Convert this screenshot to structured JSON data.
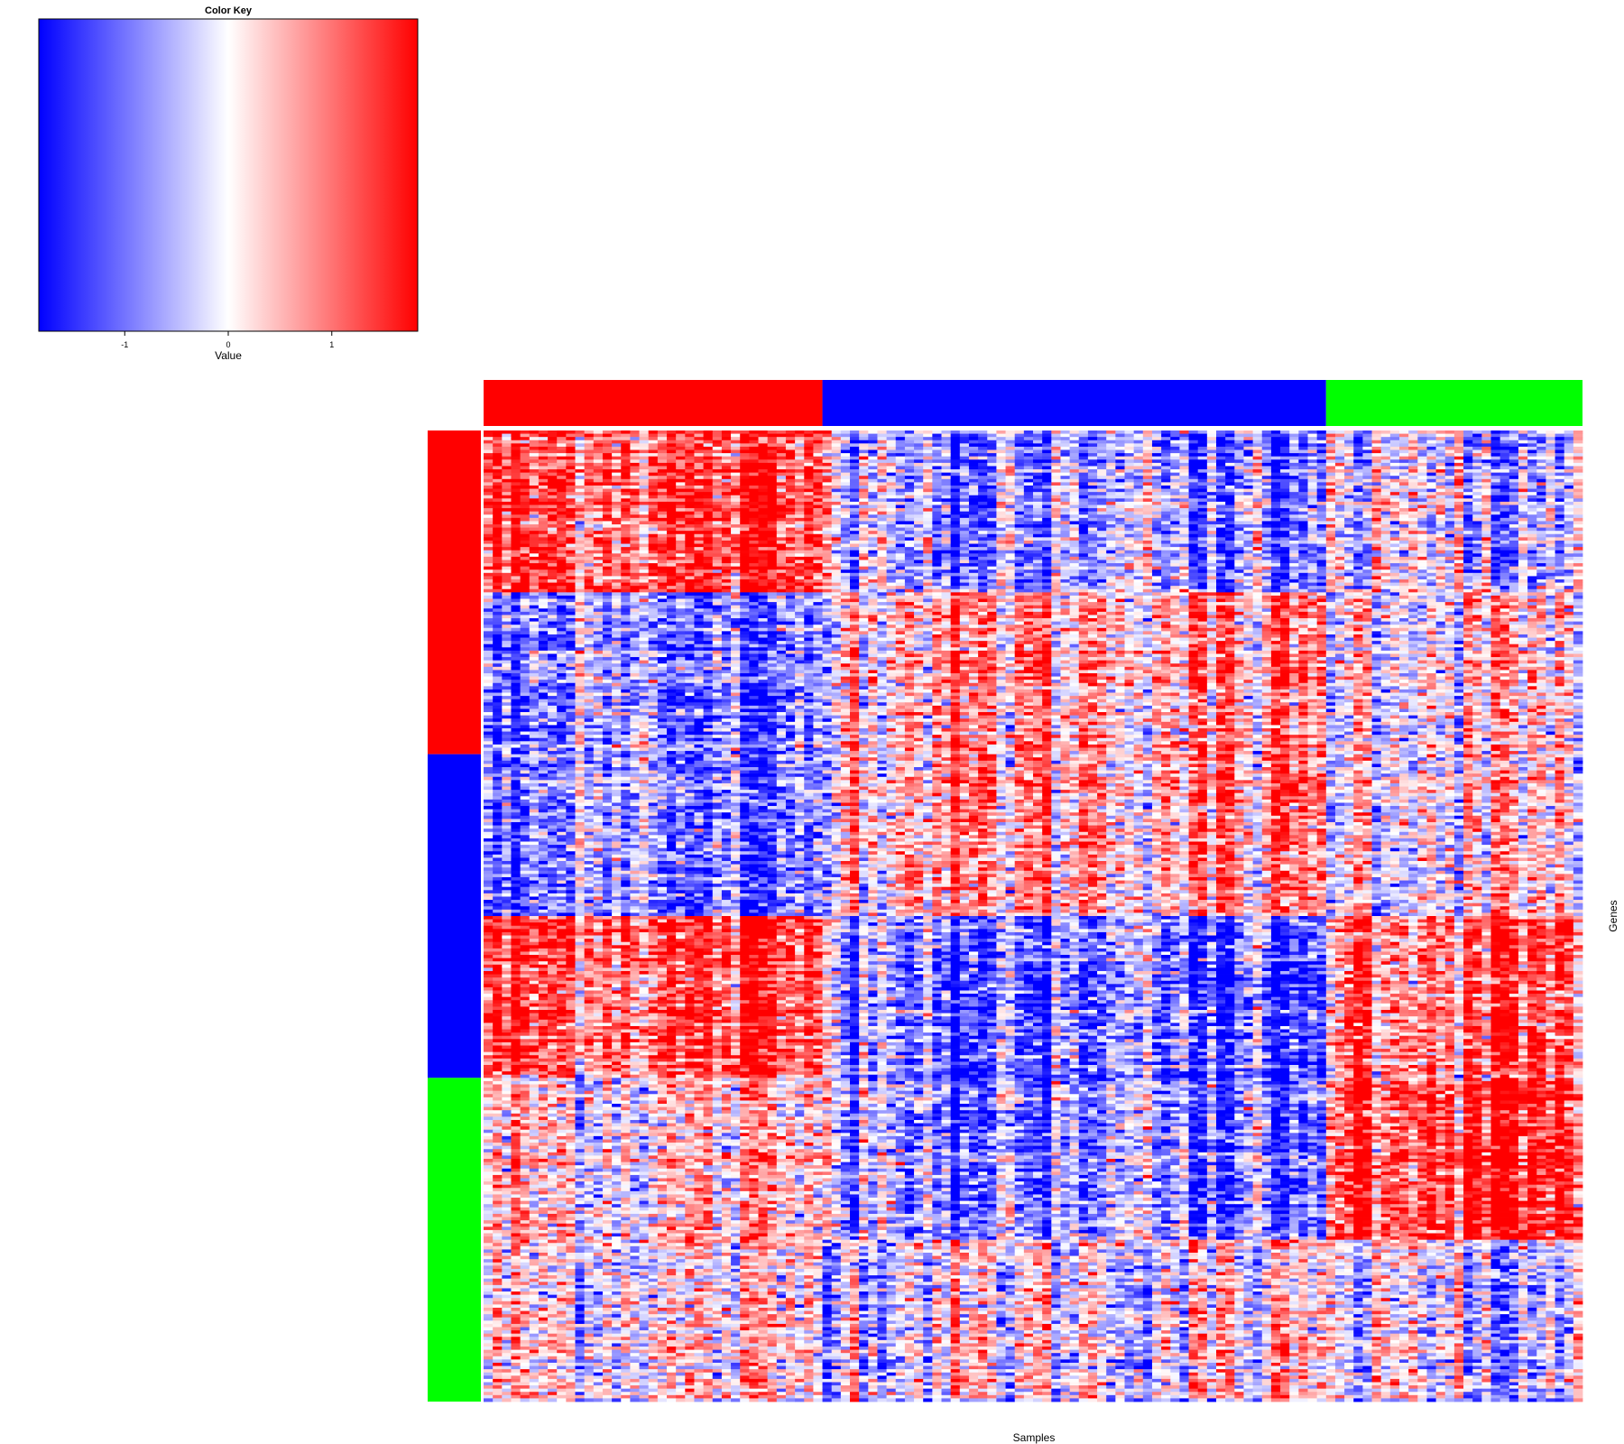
{
  "chart_data": {
    "type": "heatmap",
    "xlabel": "Samples",
    "ylabel": "Genes",
    "color_key": {
      "title": "Color Key",
      "xlabel": "Value",
      "ticks": [
        -1,
        0,
        1
      ],
      "tick_labels": [
        "-1",
        "0",
        "1"
      ],
      "range": [
        -1.83,
        1.83
      ],
      "colors": [
        "#0000ff",
        "#ffffff",
        "#ff0000"
      ]
    },
    "sample_groups": [
      {
        "color": "#ff0000",
        "n_samples": 37
      },
      {
        "color": "#0000ff",
        "n_samples": 55
      },
      {
        "color": "#00ff00",
        "n_samples": 28
      }
    ],
    "gene_groups": [
      {
        "color": "#ff0000",
        "n_genes": 100
      },
      {
        "color": "#0000ff",
        "n_genes": 100
      },
      {
        "color": "#00ff00",
        "n_genes": 100
      }
    ],
    "gene_blocks": [
      {
        "n_genes": 50,
        "mean_by_sample_group": [
          1.3,
          -0.7,
          -0.4
        ]
      },
      {
        "n_genes": 100,
        "mean_by_sample_group": [
          -0.9,
          0.6,
          0.2
        ]
      },
      {
        "n_genes": 50,
        "mean_by_sample_group": [
          1.2,
          -1.1,
          1.1
        ]
      },
      {
        "n_genes": 50,
        "mean_by_sample_group": [
          0.3,
          -0.8,
          1.6
        ]
      },
      {
        "n_genes": 50,
        "mean_by_sample_group": [
          0.1,
          0.0,
          -0.4
        ]
      }
    ]
  }
}
